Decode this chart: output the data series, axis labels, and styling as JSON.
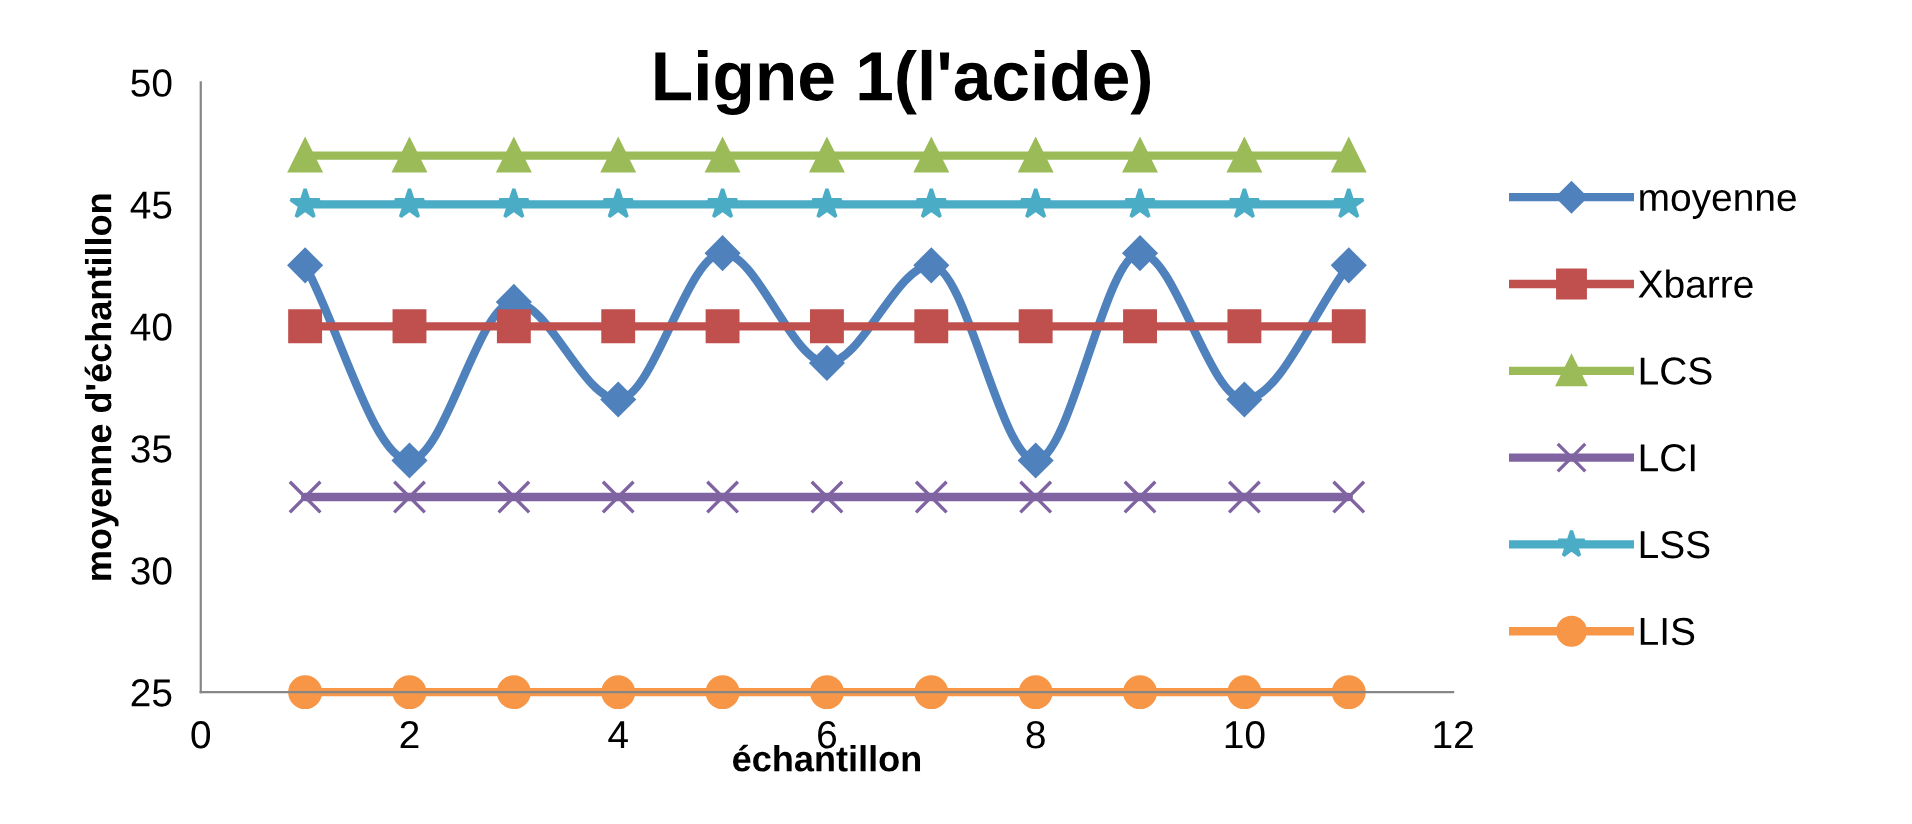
{
  "chart_data": {
    "type": "line",
    "title": "Ligne 1(l'acide)",
    "xlabel": "échantillon",
    "ylabel": "moyenne d'échantillon",
    "x": [
      1,
      2,
      3,
      4,
      5,
      6,
      7,
      8,
      9,
      10,
      11
    ],
    "series": [
      {
        "name": "moyenne",
        "color": "#4f81bd",
        "marker": "diamond",
        "values": [
          42.5,
          34.5,
          41,
          37,
          43,
          38.5,
          42.5,
          34.5,
          43,
          37,
          42.5
        ]
      },
      {
        "name": "Xbarre",
        "color": "#c0504d",
        "marker": "square",
        "values": [
          40,
          40,
          40,
          40,
          40,
          40,
          40,
          40,
          40,
          40,
          40
        ]
      },
      {
        "name": "LCS",
        "color": "#9bbb59",
        "marker": "triangle",
        "values": [
          47,
          47,
          47,
          47,
          47,
          47,
          47,
          47,
          47,
          47,
          47
        ]
      },
      {
        "name": "LCI",
        "color": "#8064a2",
        "marker": "cross",
        "values": [
          33,
          33,
          33,
          33,
          33,
          33,
          33,
          33,
          33,
          33,
          33
        ]
      },
      {
        "name": "LSS",
        "color": "#4bacc6",
        "marker": "star",
        "values": [
          45,
          45,
          45,
          45,
          45,
          45,
          45,
          45,
          45,
          45,
          45
        ]
      },
      {
        "name": "LIS",
        "color": "#f79646",
        "marker": "circle",
        "values": [
          25,
          25,
          25,
          25,
          25,
          25,
          25,
          25,
          25,
          25,
          25
        ]
      }
    ],
    "xlim": [
      0,
      12
    ],
    "xticks": [
      0,
      2,
      4,
      6,
      8,
      10,
      12
    ],
    "ylim": [
      25,
      50
    ],
    "yticks": [
      25,
      30,
      35,
      40,
      45,
      50
    ],
    "grid": false,
    "legend": "right"
  }
}
